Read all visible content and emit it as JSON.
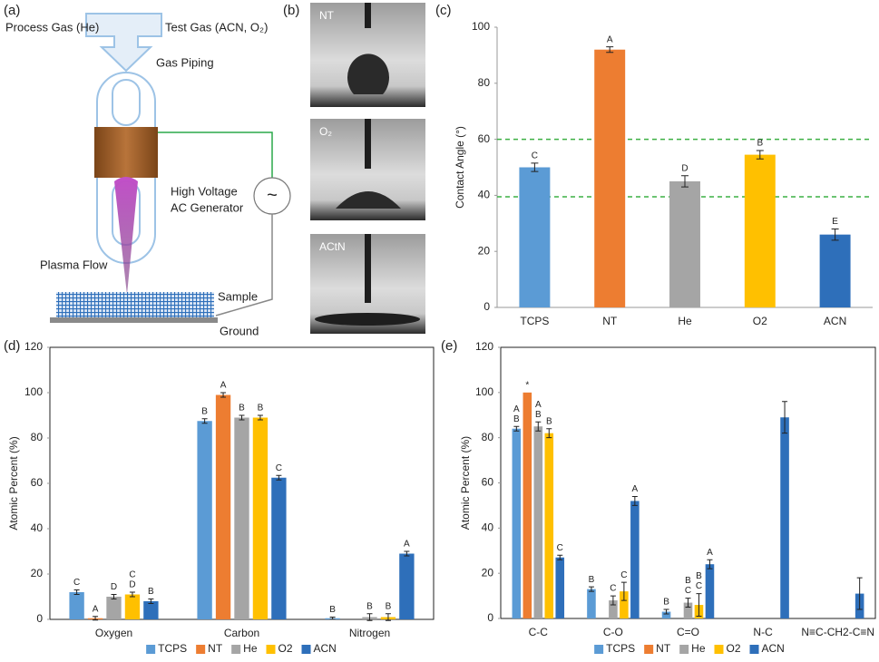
{
  "panel_labels": [
    "(a)",
    "(b)",
    "(c)",
    "(d)",
    "(e)"
  ],
  "diagram": {
    "process_gas": "Process Gas (He)",
    "test_gas": "Test Gas (ACN, O₂)",
    "gas_piping": "Gas Piping",
    "generator": [
      "High Voltage",
      "AC Generator"
    ],
    "ac_symbol": "~",
    "plasma_flow": "Plasma Flow",
    "sample": "Sample",
    "ground": "Ground"
  },
  "photos": [
    "NT",
    "O₂",
    "ACtN"
  ],
  "chart_data": [
    {
      "type": "bar",
      "ylabel": "Contact Angle (°)",
      "categories": [
        "TCPS",
        "NT",
        "He",
        "O2",
        "ACN"
      ],
      "values": [
        50,
        92,
        45,
        54.5,
        26
      ],
      "errors": [
        1.5,
        1,
        2,
        1.5,
        2
      ],
      "annotations": [
        "C",
        "A",
        "D",
        "B",
        "E"
      ],
      "colors": [
        "#5b9bd5",
        "#ed7d31",
        "#a5a5a5",
        "#ffc000",
        "#2e6fba"
      ],
      "reference_lines": [
        60,
        39.5
      ],
      "reference_color": "#3cb043",
      "ylim": [
        0,
        100
      ],
      "yticks": [
        0,
        20,
        40,
        60,
        80,
        100
      ]
    },
    {
      "type": "bar",
      "ylabel": "Atomic Percent (%)",
      "categories": [
        "Oxygen",
        "Carbon",
        "Nitrogen"
      ],
      "series": [
        {
          "name": "TCPS",
          "color": "#5b9bd5",
          "values": [
            12,
            87.5,
            0.5
          ],
          "errors": [
            1,
            1,
            0.5
          ],
          "annotations": [
            [
              "C"
            ],
            [
              "B"
            ],
            [
              "B"
            ]
          ]
        },
        {
          "name": "NT",
          "color": "#ed7d31",
          "values": [
            0.5,
            99,
            0
          ],
          "errors": [
            0.8,
            1,
            null
          ],
          "annotations": [
            [
              "A"
            ],
            [
              "A"
            ],
            null
          ]
        },
        {
          "name": "He",
          "color": "#a5a5a5",
          "values": [
            10,
            89,
            1
          ],
          "errors": [
            1,
            1,
            1.5
          ],
          "annotations": [
            [
              "D"
            ],
            [
              "B"
            ],
            [
              "B"
            ]
          ]
        },
        {
          "name": "O2",
          "color": "#ffc000",
          "values": [
            11,
            89,
            1
          ],
          "errors": [
            1,
            1,
            1.5
          ],
          "annotations": [
            [
              "C",
              "D"
            ],
            [
              "B"
            ],
            [
              "B"
            ]
          ]
        },
        {
          "name": "ACN",
          "color": "#2e6fba",
          "values": [
            8,
            62.5,
            29
          ],
          "errors": [
            1,
            1,
            1
          ],
          "annotations": [
            [
              "B"
            ],
            [
              "C"
            ],
            [
              "A"
            ]
          ]
        }
      ],
      "ylim": [
        0,
        120
      ],
      "yticks": [
        0,
        20,
        40,
        60,
        80,
        100,
        120
      ],
      "legend": "bottom"
    },
    {
      "type": "bar",
      "ylabel": "Atomic Percent (%)",
      "categories": [
        "C-C",
        "C-O",
        "C=O",
        "N-C",
        "N≡C-CH2-C≡N"
      ],
      "series": [
        {
          "name": "TCPS",
          "color": "#5b9bd5",
          "values": [
            84,
            13,
            3,
            null,
            null
          ],
          "errors": [
            1,
            1,
            1,
            null,
            null
          ],
          "annotations": [
            [
              "A",
              "B"
            ],
            [
              "B"
            ],
            [
              "B"
            ],
            null,
            null
          ]
        },
        {
          "name": "NT",
          "color": "#ed7d31",
          "values": [
            100,
            null,
            null,
            null,
            null
          ],
          "errors": [
            null,
            null,
            null,
            null,
            null
          ],
          "annotations": [
            [
              "*"
            ],
            null,
            null,
            null,
            null
          ]
        },
        {
          "name": "He",
          "color": "#a5a5a5",
          "values": [
            85,
            8,
            7,
            null,
            null
          ],
          "errors": [
            2,
            2,
            2,
            null,
            null
          ],
          "annotations": [
            [
              "A",
              "B"
            ],
            [
              "C"
            ],
            [
              "B",
              "C"
            ],
            null,
            null
          ]
        },
        {
          "name": "O2",
          "color": "#ffc000",
          "values": [
            82,
            12,
            6,
            null,
            null
          ],
          "errors": [
            2,
            4,
            5,
            null,
            null
          ],
          "annotations": [
            [
              "B"
            ],
            [
              "C"
            ],
            [
              "B",
              "C"
            ],
            null,
            null
          ]
        },
        {
          "name": "ACN",
          "color": "#2e6fba",
          "values": [
            27,
            52,
            24,
            89,
            11
          ],
          "errors": [
            1,
            2,
            2,
            7,
            7
          ],
          "annotations": [
            [
              "C"
            ],
            [
              "A"
            ],
            [
              "A"
            ],
            null,
            null
          ]
        }
      ],
      "ylim": [
        0,
        120
      ],
      "yticks": [
        0,
        20,
        40,
        60,
        80,
        100,
        120
      ],
      "legend": "bottom"
    }
  ]
}
